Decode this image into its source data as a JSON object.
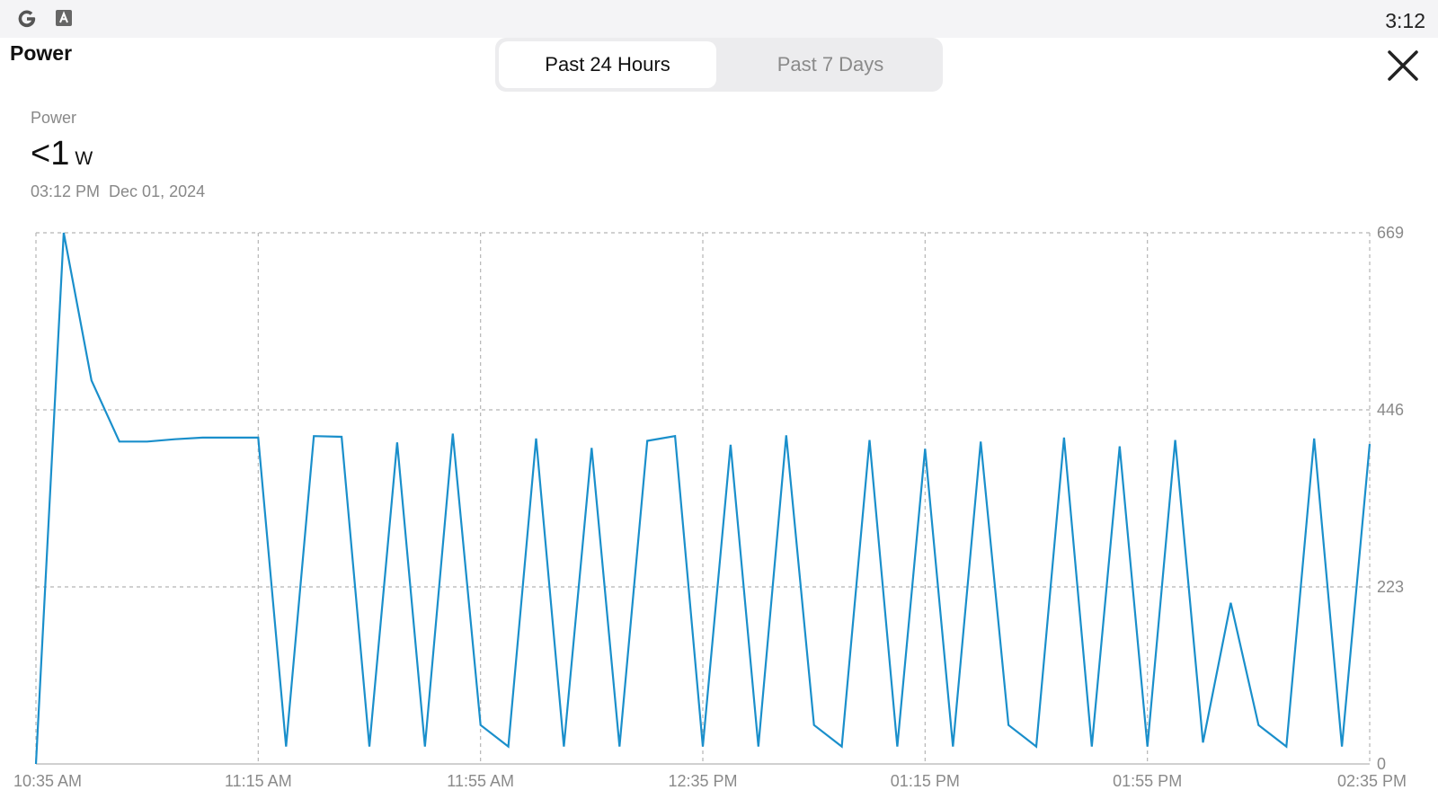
{
  "status_bar": {
    "time": "3:12",
    "icons": [
      "google-g-icon",
      "a-badge-icon"
    ]
  },
  "header": {
    "title": "Power",
    "tabs": [
      {
        "label": "Past 24 Hours",
        "active": true
      },
      {
        "label": "Past 7 Days",
        "active": false
      }
    ],
    "close_icon": "close-icon"
  },
  "reading": {
    "label": "Power",
    "value": "<1",
    "unit": "W",
    "time": "03:12 PM",
    "date": "Dec 01, 2024"
  },
  "colors": {
    "line": "#1a8fcb",
    "grid": "#b5b5b5",
    "tick_text": "#8a8a8a",
    "active_tab_text": "#111111",
    "inactive_tab_text": "#8a8a8a"
  },
  "chart_data": {
    "type": "line",
    "x_ticks": [
      "10:35 AM",
      "11:15 AM",
      "11:55 AM",
      "12:35 PM",
      "01:15 PM",
      "01:55 PM",
      "02:35 PM"
    ],
    "y_ticks": [
      0,
      223,
      446,
      669
    ],
    "ylim": [
      0,
      669
    ],
    "grid": true,
    "x_start": "10:35 AM",
    "x_end": "02:35 PM",
    "series": [
      {
        "points": [
          [
            "10:35 AM",
            0
          ],
          [
            "10:40 AM",
            669
          ],
          [
            "10:45 AM",
            483
          ],
          [
            "10:50 AM",
            406
          ],
          [
            "10:55 AM",
            406
          ],
          [
            "11:00 AM",
            409
          ],
          [
            "11:05 AM",
            411
          ],
          [
            "11:10 AM",
            411
          ],
          [
            "11:15 AM",
            411
          ],
          [
            "11:20 AM",
            22
          ],
          [
            "11:25 AM",
            413
          ],
          [
            "11:30 AM",
            412
          ],
          [
            "11:35 AM",
            22
          ],
          [
            "11:40 AM",
            405
          ],
          [
            "11:45 AM",
            22
          ],
          [
            "11:50 AM",
            416
          ],
          [
            "11:55 AM",
            49
          ],
          [
            "12:00 PM",
            22
          ],
          [
            "12:05 PM",
            410
          ],
          [
            "12:10 PM",
            22
          ],
          [
            "12:15 PM",
            398
          ],
          [
            "12:20 PM",
            22
          ],
          [
            "12:25 PM",
            407
          ],
          [
            "12:30 PM",
            413
          ],
          [
            "12:35 PM",
            22
          ],
          [
            "12:40 PM",
            402
          ],
          [
            "12:45 PM",
            22
          ],
          [
            "12:50 PM",
            414
          ],
          [
            "12:55 PM",
            49
          ],
          [
            "01:00 PM",
            22
          ],
          [
            "01:05 PM",
            408
          ],
          [
            "01:10 PM",
            22
          ],
          [
            "01:15 PM",
            397
          ],
          [
            "01:20 PM",
            22
          ],
          [
            "01:25 PM",
            406
          ],
          [
            "01:30 PM",
            49
          ],
          [
            "01:35 PM",
            22
          ],
          [
            "01:40 PM",
            411
          ],
          [
            "01:45 PM",
            22
          ],
          [
            "01:50 PM",
            400
          ],
          [
            "01:55 PM",
            22
          ],
          [
            "02:00 PM",
            408
          ],
          [
            "02:05 PM",
            27
          ],
          [
            "02:10 PM",
            203
          ],
          [
            "02:15 PM",
            49
          ],
          [
            "02:20 PM",
            22
          ],
          [
            "02:25 PM",
            410
          ],
          [
            "02:30 PM",
            22
          ],
          [
            "02:35 PM",
            403
          ]
        ]
      }
    ]
  }
}
